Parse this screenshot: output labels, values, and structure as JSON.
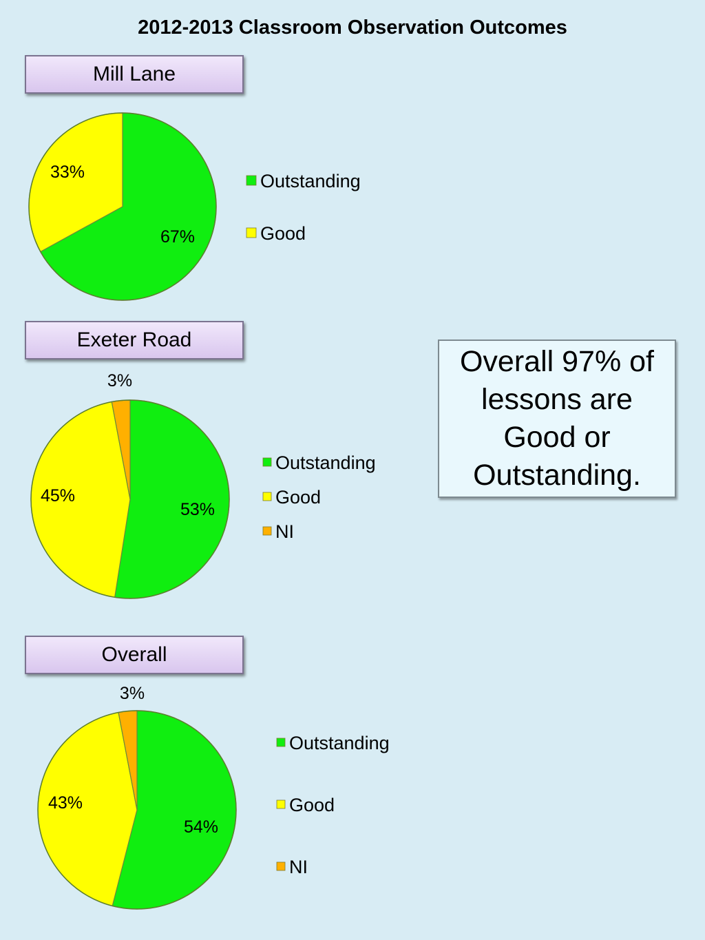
{
  "title": "2012-2013 Classroom Observation Outcomes",
  "callout": "Overall 97% of lessons are Good or Outstanding.",
  "colors": {
    "Outstanding": "#10ee10",
    "Good": "#ffff00",
    "NI": "#ffb000"
  },
  "chart_data": [
    {
      "type": "pie",
      "title": "Mill Lane",
      "categories": [
        "Outstanding",
        "Good"
      ],
      "values": [
        67,
        33
      ],
      "data_labels": [
        "67%",
        "33%"
      ],
      "legend": "right"
    },
    {
      "type": "pie",
      "title": "Exeter Road",
      "categories": [
        "Outstanding",
        "Good",
        "NI"
      ],
      "values": [
        53,
        45,
        3
      ],
      "data_labels": [
        "53%",
        "45%",
        "3%"
      ],
      "legend": "right"
    },
    {
      "type": "pie",
      "title": "Overall",
      "categories": [
        "Outstanding",
        "Good",
        "NI"
      ],
      "values": [
        54,
        43,
        3
      ],
      "data_labels": [
        "54%",
        "43%",
        "3%"
      ],
      "legend": "right"
    }
  ]
}
